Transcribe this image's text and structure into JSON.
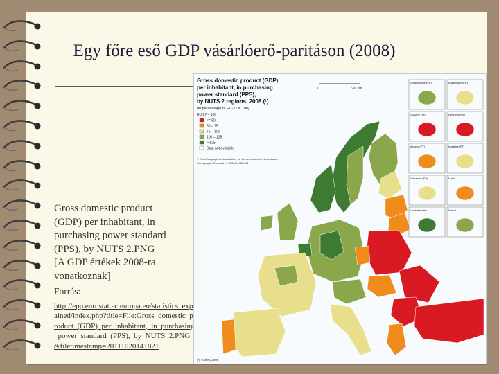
{
  "slide": {
    "title": "Egy főre eső GDP vásárlóerő-paritáson (2008)",
    "caption": {
      "lines": [
        "Gross domestic product",
        "(GDP) per inhabitant, in",
        "purchasing power standard",
        "(PPS), by NUTS 2.PNG",
        " [A GDP értékek 2008-ra",
        "vonatkoznak]"
      ],
      "source_label": "Forrás:",
      "source_url": "http://epp.eurostat.ec.europa.eu/statistics_explained/index.php?title=File:Gross_domestic_product_(GDP)_per_inhabitant,_in_purchasing_power_standard_(PPS),_by_NUTS_2.PNG&filetimestamp=20111020141821"
    }
  },
  "map": {
    "title_lines": [
      "Gross domestic product (GDP)",
      "per inhabitant, in purchasing",
      "power standard (PPS),",
      "by NUTS 2 regions, 2008 (¹)"
    ],
    "subtitle": "(in percentage of EU-27 = 100)",
    "legend": {
      "header": "EU-27 = 100",
      "items": [
        {
          "label": "<= 50",
          "color": "#d91a23"
        },
        {
          "label": "50 – 75",
          "color": "#ef8c1c"
        },
        {
          "label": "75 – 100",
          "color": "#e7df8c"
        },
        {
          "label": "100 – 125",
          "color": "#8aa74c"
        },
        {
          "label": "> 125",
          "color": "#3f7a33"
        },
        {
          "label": "Data not available",
          "color": "#ffffff"
        }
      ]
    },
    "copyright": "© EuroGeographics Association, for the administrative boundaries",
    "cartography": "Cartography: Eurostat — GISCO, 05/2011",
    "scale_bar": {
      "zero": "0",
      "end": "600 km"
    },
    "insets": [
      {
        "name": "Guadeloupe (FR)"
      },
      {
        "name": "Martinique (FR)"
      },
      {
        "name": "Guyane (FR)"
      },
      {
        "name": "Réunion (FR)"
      },
      {
        "name": "Açores (PT)"
      },
      {
        "name": "Madeira (PT)"
      },
      {
        "name": "Canarias (ES)"
      },
      {
        "name": "Malta"
      },
      {
        "name": "Liechtenstein"
      },
      {
        "name": "Ísland"
      }
    ],
    "footnote": "(¹) Turkey, 2006"
  },
  "colors": {
    "background": "#a08a72",
    "paper": "#fbf8e8",
    "sea": "#f7fbfd",
    "title": "#1c1c3a",
    "ring": "#3b3b3b"
  }
}
